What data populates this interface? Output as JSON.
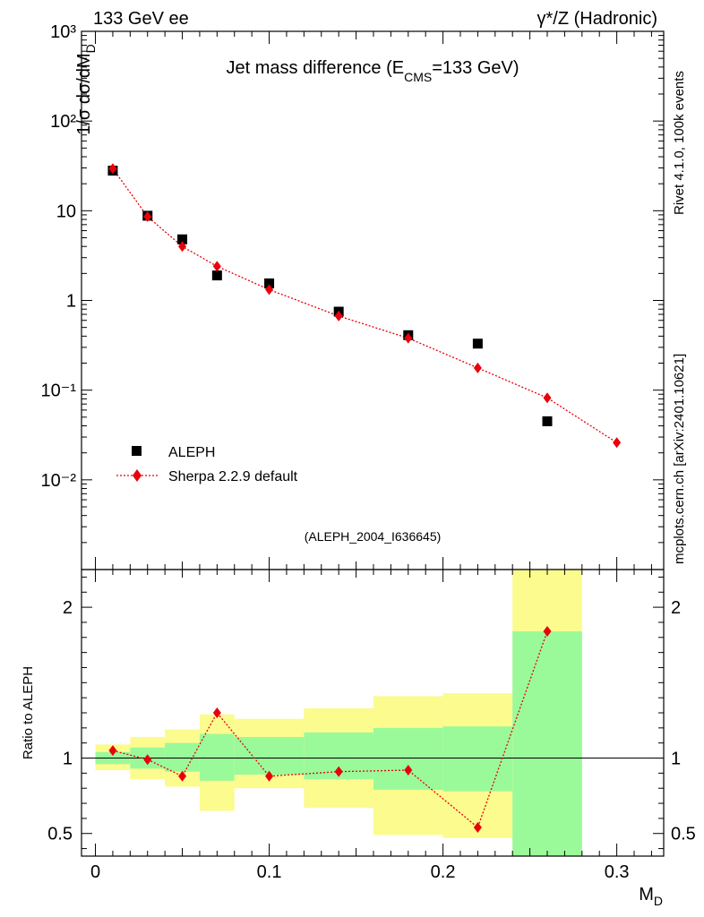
{
  "header": {
    "top_left": "133 GeV ee",
    "top_right": "γ*/Z (Hadronic)"
  },
  "side_labels": {
    "rivet": "Rivet 4.1.0,  100k events",
    "mcplots": "mcplots.cern.ch [arXiv:2401.10621]"
  },
  "chart_data": {
    "type": "scatter",
    "title": "Jet mass difference (E_CMS=133 GeV)",
    "title_main": "Jet mass difference (E",
    "title_sub": "CMS",
    "title_tail": "=133 GeV)",
    "analysis_id": "(ALEPH_2004_I636645)",
    "xlabel": "M_D",
    "ylabel": "1/σ  dσ/dM_D",
    "ratio_ylabel": "Ratio to ALEPH",
    "xlim": [
      -0.008,
      0.327
    ],
    "ylim_log": [
      0.001,
      1000
    ],
    "ratio_ylim": [
      0.35,
      2.25
    ],
    "x_ticks": [
      "0",
      "0.1",
      "0.2",
      "0.3"
    ],
    "x_tick_values": [
      0,
      0.1,
      0.2,
      0.3
    ],
    "y_ticks": [
      "10⁻²",
      "10⁻¹",
      "1",
      "10",
      "10²",
      "10³"
    ],
    "y_tick_values": [
      0.01,
      0.1,
      1,
      10,
      100,
      1000
    ],
    "ratio_ticks": [
      "0.5",
      "1",
      "2"
    ],
    "ratio_tick_values": [
      0.5,
      1,
      2
    ],
    "legend": {
      "placement": "bottom-left",
      "data_label": "ALEPH",
      "mc_label": "Sherpa 2.2.9 default"
    },
    "series": [
      {
        "name": "ALEPH",
        "marker": "square",
        "color": "#000000",
        "x": [
          0.01,
          0.03,
          0.05,
          0.07,
          0.1,
          0.14,
          0.18,
          0.22,
          0.26
        ],
        "y": [
          28.0,
          8.8,
          4.8,
          1.9,
          1.55,
          0.75,
          0.41,
          0.33,
          0.045
        ]
      },
      {
        "name": "Sherpa 2.2.9 default",
        "marker": "diamond",
        "color": "#e8000b",
        "line": "dotted",
        "x": [
          0.01,
          0.03,
          0.05,
          0.07,
          0.1,
          0.14,
          0.18,
          0.22,
          0.26,
          0.3
        ],
        "y": [
          29.5,
          8.6,
          4.0,
          2.4,
          1.32,
          0.67,
          0.38,
          0.177,
          0.082,
          0.026
        ]
      }
    ],
    "ratio": {
      "x": [
        0.01,
        0.03,
        0.05,
        0.07,
        0.1,
        0.14,
        0.18,
        0.22,
        0.26
      ],
      "y": [
        1.05,
        0.99,
        0.88,
        1.3,
        0.88,
        0.91,
        0.92,
        0.54,
        1.84
      ]
    },
    "error_bands": {
      "edges": [
        0.0,
        0.02,
        0.04,
        0.06,
        0.08,
        0.12,
        0.16,
        0.2,
        0.24,
        0.28
      ],
      "inner_low": [
        0.96,
        0.93,
        0.91,
        0.85,
        0.89,
        0.86,
        0.79,
        0.78,
        0.35
      ],
      "inner_high": [
        1.04,
        1.07,
        1.1,
        1.16,
        1.14,
        1.17,
        1.2,
        1.21,
        1.84
      ],
      "outer_low": [
        0.92,
        0.86,
        0.81,
        0.65,
        0.8,
        0.67,
        0.49,
        0.47,
        0.35
      ],
      "outer_high": [
        1.09,
        1.14,
        1.19,
        1.29,
        1.26,
        1.33,
        1.41,
        1.43,
        2.25
      ],
      "inner_color": "#9afa9a",
      "outer_color": "#fbfb8e"
    }
  }
}
